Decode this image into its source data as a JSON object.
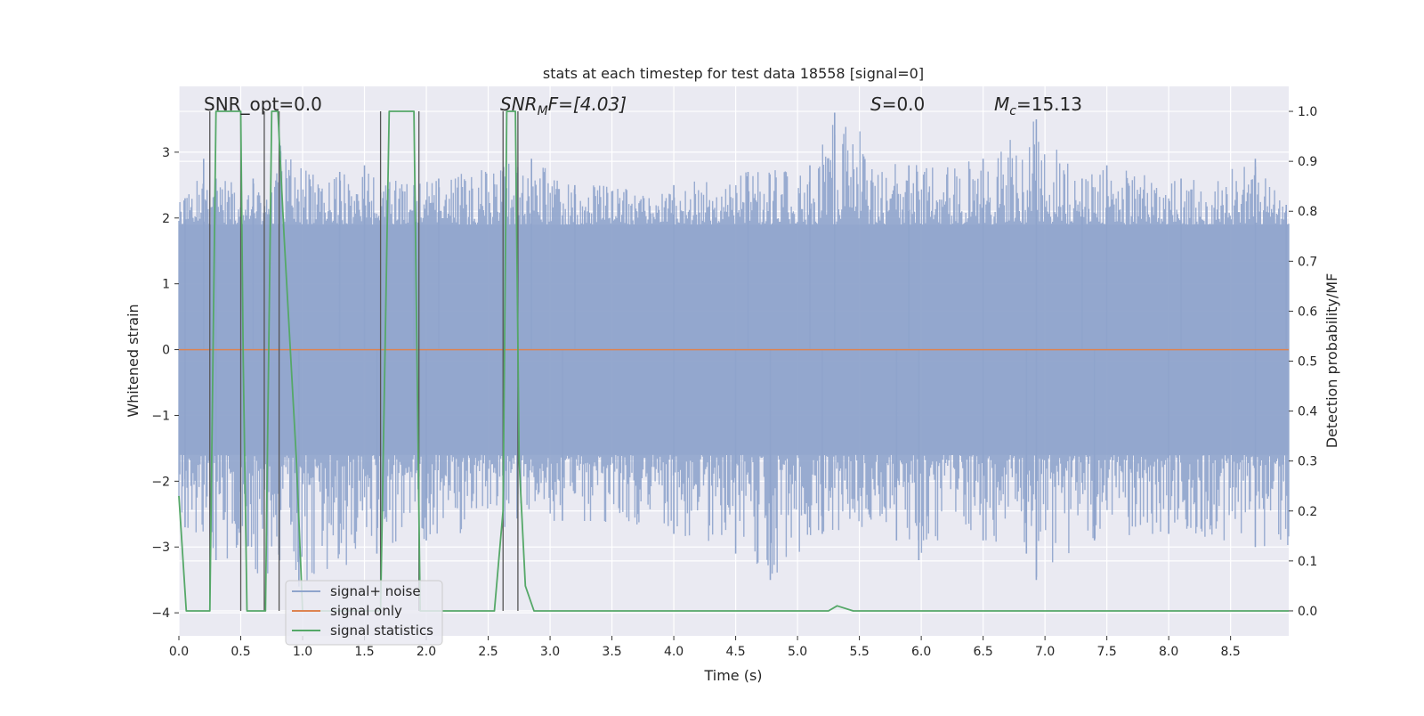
{
  "chart_data": {
    "type": "line",
    "title": "stats at each timestep for test data 18558 [signal=0]",
    "xlabel": "Time (s)",
    "ylabel": "Whitened strain",
    "y2label": "Detection probability/MF",
    "xlim": [
      0.0,
      8.97
    ],
    "ylim": [
      -4.35,
      4.0
    ],
    "y2lim": [
      -0.05,
      1.05
    ],
    "xticks": [
      "0.0",
      "0.5",
      "1.0",
      "1.5",
      "2.0",
      "2.5",
      "3.0",
      "3.5",
      "4.0",
      "4.5",
      "5.0",
      "5.5",
      "6.0",
      "6.5",
      "7.0",
      "7.5",
      "8.0",
      "8.5"
    ],
    "yticks": [
      "3",
      "2",
      "1",
      "0",
      "−1",
      "−2",
      "−3",
      "−4"
    ],
    "y2ticks": [
      "1.0",
      "0.9",
      "0.8",
      "0.7",
      "0.6",
      "0.5",
      "0.4",
      "0.3",
      "0.2",
      "0.1",
      "0.0"
    ],
    "grid": true,
    "legend": {
      "position": "lower-left",
      "entries": [
        {
          "label": "signal+ noise",
          "color": "#8fa4cc"
        },
        {
          "label": "signal only",
          "color": "#dd8452"
        },
        {
          "label": "signal statistics",
          "color": "#55a868"
        }
      ]
    },
    "annotations": [
      {
        "key": "snr_opt",
        "text": "SNR_opt=0.0"
      },
      {
        "key": "snr_mf",
        "prefix": "SNR",
        "sub": "M",
        "suffix": "F=[4.03]"
      },
      {
        "key": "s",
        "prefix": "S",
        "suffix": "=0.0"
      },
      {
        "key": "mc",
        "prefix": "M",
        "sub": "c",
        "suffix": "=15.13"
      }
    ],
    "series": [
      {
        "name": "signal+ noise",
        "kind": "noise",
        "axis": "left",
        "style": "band",
        "x_range": [
          0.0,
          8.97
        ],
        "core_band": [
          -1.6,
          1.9
        ],
        "peaks_high": [
          [
            0.05,
            2.3
          ],
          [
            0.2,
            2.9
          ],
          [
            0.3,
            2.6
          ],
          [
            0.6,
            2.6
          ],
          [
            0.82,
            3.1
          ],
          [
            1.3,
            2.7
          ],
          [
            1.5,
            2.8
          ],
          [
            1.9,
            2.5
          ],
          [
            2.1,
            2.6
          ],
          [
            2.85,
            2.9
          ],
          [
            3.2,
            2.5
          ],
          [
            4.0,
            2.5
          ],
          [
            4.6,
            2.7
          ],
          [
            5.1,
            2.8
          ],
          [
            5.3,
            3.6
          ],
          [
            5.9,
            2.8
          ],
          [
            6.5,
            2.9
          ],
          [
            6.93,
            3.5
          ],
          [
            7.3,
            2.6
          ],
          [
            7.5,
            2.8
          ],
          [
            8.1,
            2.6
          ],
          [
            8.7,
            2.9
          ],
          [
            8.95,
            2.2
          ]
        ],
        "peaks_low": [
          [
            0.05,
            -2.7
          ],
          [
            0.3,
            -3.2
          ],
          [
            0.97,
            -3.6
          ],
          [
            1.6,
            -3.1
          ],
          [
            2.0,
            -2.9
          ],
          [
            3.1,
            -2.6
          ],
          [
            4.0,
            -2.8
          ],
          [
            4.5,
            -3.1
          ],
          [
            4.78,
            -3.5
          ],
          [
            5.2,
            -2.8
          ],
          [
            5.8,
            -2.9
          ],
          [
            5.98,
            -3.2
          ],
          [
            6.5,
            -2.9
          ],
          [
            6.85,
            -3.1
          ],
          [
            6.93,
            -3.5
          ],
          [
            7.4,
            -2.9
          ],
          [
            8.0,
            -2.8
          ],
          [
            8.7,
            -3.0
          ]
        ]
      },
      {
        "name": "signal only",
        "kind": "flat",
        "axis": "left",
        "x": [
          0.0,
          8.97
        ],
        "y": [
          0.0,
          0.0
        ]
      },
      {
        "name": "signal statistics",
        "kind": "line",
        "axis": "right",
        "x": [
          0.0,
          0.06,
          0.25,
          0.3,
          0.5,
          0.52,
          0.55,
          0.7,
          0.75,
          0.8,
          0.85,
          0.95,
          1.0,
          1.63,
          1.7,
          1.75,
          1.9,
          1.95,
          2.1,
          2.55,
          2.62,
          2.65,
          2.72,
          2.75,
          2.8,
          2.87,
          5.25,
          5.32,
          5.45,
          5.85,
          5.95,
          8.97
        ],
        "y": [
          0.23,
          0.0,
          0.0,
          1.0,
          1.0,
          0.5,
          0.0,
          0.0,
          1.0,
          1.0,
          0.75,
          0.3,
          0.0,
          0.0,
          1.0,
          1.0,
          1.0,
          0.0,
          0.0,
          0.0,
          0.2,
          1.0,
          1.0,
          0.3,
          0.05,
          0.0,
          0.0,
          0.01,
          0.0,
          0.0,
          0.0,
          0.0
        ]
      }
    ],
    "vlines": [
      0.25,
      0.5,
      0.69,
      0.81,
      1.63,
      1.94,
      2.62,
      2.74
    ],
    "colors": {
      "background": "#eaeaf2",
      "grid": "#ffffff",
      "noise": "#8fa4cc",
      "signal": "#dd8452",
      "stats": "#55a868",
      "vline": "#555555",
      "text": "#262626"
    }
  }
}
